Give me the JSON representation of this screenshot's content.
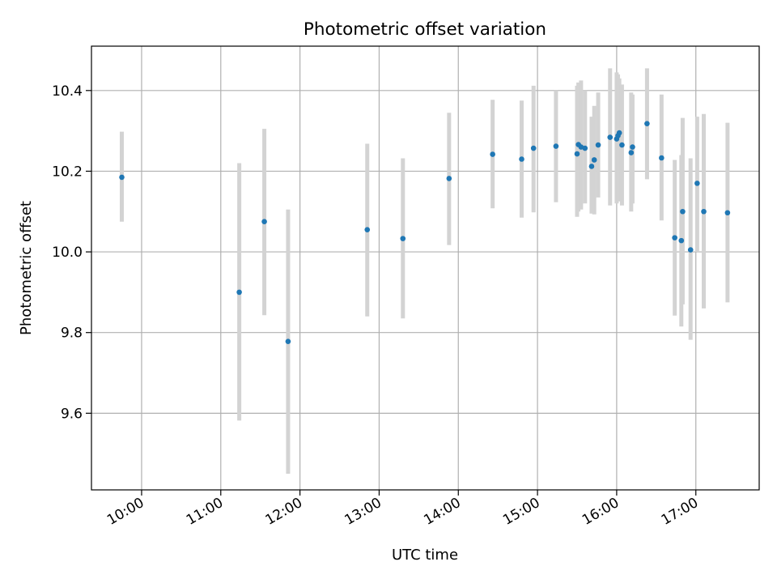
{
  "chart_data": {
    "type": "scatter",
    "title": "Photometric offset variation",
    "xlabel": "UTC time",
    "ylabel": "Photometric offset",
    "x_ticks": [
      "10:00",
      "11:00",
      "12:00",
      "13:00",
      "14:00",
      "15:00",
      "16:00",
      "17:00"
    ],
    "y_ticks": [
      "9.6",
      "9.8",
      "10.0",
      "10.2",
      "10.4"
    ],
    "xlim": [
      "09:22",
      "17:48"
    ],
    "ylim": [
      9.41,
      10.51
    ],
    "grid": true,
    "errorbar_color": "#d3d3d3",
    "point_color": "#1f77b4",
    "points": [
      {
        "t": "09:45",
        "y": 10.185,
        "lo": 10.075,
        "hi": 10.298
      },
      {
        "t": "11:14",
        "y": 9.9,
        "lo": 9.582,
        "hi": 10.22
      },
      {
        "t": "11:33",
        "y": 10.075,
        "lo": 9.843,
        "hi": 10.305
      },
      {
        "t": "11:51",
        "y": 9.778,
        "lo": 9.45,
        "hi": 10.105
      },
      {
        "t": "12:51",
        "y": 10.055,
        "lo": 9.84,
        "hi": 10.268
      },
      {
        "t": "13:18",
        "y": 10.033,
        "lo": 9.835,
        "hi": 10.232
      },
      {
        "t": "13:53",
        "y": 10.182,
        "lo": 10.017,
        "hi": 10.345
      },
      {
        "t": "14:26",
        "y": 10.242,
        "lo": 10.108,
        "hi": 10.377
      },
      {
        "t": "14:48",
        "y": 10.23,
        "lo": 10.085,
        "hi": 10.375
      },
      {
        "t": "14:57",
        "y": 10.257,
        "lo": 10.098,
        "hi": 10.412
      },
      {
        "t": "15:14",
        "y": 10.262,
        "lo": 10.123,
        "hi": 10.4
      },
      {
        "t": "15:30",
        "y": 10.243,
        "lo": 10.087,
        "hi": 10.412
      },
      {
        "t": "15:31",
        "y": 10.266,
        "lo": 10.1,
        "hi": 10.42
      },
      {
        "t": "15:33",
        "y": 10.26,
        "lo": 10.105,
        "hi": 10.425
      },
      {
        "t": "15:36",
        "y": 10.257,
        "lo": 10.12,
        "hi": 10.4
      },
      {
        "t": "15:41",
        "y": 10.212,
        "lo": 10.095,
        "hi": 10.335
      },
      {
        "t": "15:43",
        "y": 10.228,
        "lo": 10.093,
        "hi": 10.362
      },
      {
        "t": "15:46",
        "y": 10.265,
        "lo": 10.135,
        "hi": 10.395
      },
      {
        "t": "15:55",
        "y": 10.284,
        "lo": 10.115,
        "hi": 10.455
      },
      {
        "t": "16:00",
        "y": 10.28,
        "lo": 10.12,
        "hi": 10.445
      },
      {
        "t": "16:01",
        "y": 10.288,
        "lo": 10.125,
        "hi": 10.44
      },
      {
        "t": "16:02",
        "y": 10.295,
        "lo": 10.13,
        "hi": 10.43
      },
      {
        "t": "16:04",
        "y": 10.265,
        "lo": 10.115,
        "hi": 10.415
      },
      {
        "t": "16:11",
        "y": 10.246,
        "lo": 10.1,
        "hi": 10.395
      },
      {
        "t": "16:12",
        "y": 10.26,
        "lo": 10.12,
        "hi": 10.39
      },
      {
        "t": "16:23",
        "y": 10.318,
        "lo": 10.18,
        "hi": 10.455
      },
      {
        "t": "16:34",
        "y": 10.233,
        "lo": 10.078,
        "hi": 10.39
      },
      {
        "t": "16:44",
        "y": 10.035,
        "lo": 9.842,
        "hi": 10.228
      },
      {
        "t": "16:49",
        "y": 10.028,
        "lo": 9.815,
        "hi": 10.24
      },
      {
        "t": "16:50",
        "y": 10.1,
        "lo": 9.87,
        "hi": 10.332
      },
      {
        "t": "16:56",
        "y": 10.005,
        "lo": 9.782,
        "hi": 10.232
      },
      {
        "t": "17:01",
        "y": 10.17,
        "lo": 10.0,
        "hi": 10.335
      },
      {
        "t": "17:06",
        "y": 10.1,
        "lo": 9.86,
        "hi": 10.342
      },
      {
        "t": "17:24",
        "y": 10.097,
        "lo": 9.875,
        "hi": 10.32
      }
    ]
  }
}
